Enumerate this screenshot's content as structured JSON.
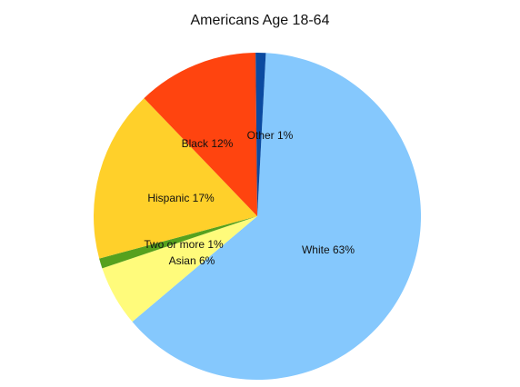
{
  "chart_data": {
    "type": "pie",
    "title": "Americans Age 18-64",
    "slices": [
      {
        "name": "White",
        "value": 63,
        "label": "White 63%",
        "color": "#85C8FD"
      },
      {
        "name": "Asian",
        "value": 6,
        "label": "Asian 6%",
        "color": "#FFFB7B"
      },
      {
        "name": "Two or more",
        "value": 1,
        "label": "Two or more 1%",
        "color": "#56A11E"
      },
      {
        "name": "Hispanic",
        "value": 17,
        "label": "Hispanic 17%",
        "color": "#FFD02A"
      },
      {
        "name": "Black",
        "value": 12,
        "label": "Black 12%",
        "color": "#FF440F"
      },
      {
        "name": "Other",
        "value": 1,
        "label": "Other 1%",
        "color": "#0B4AA0"
      }
    ]
  }
}
